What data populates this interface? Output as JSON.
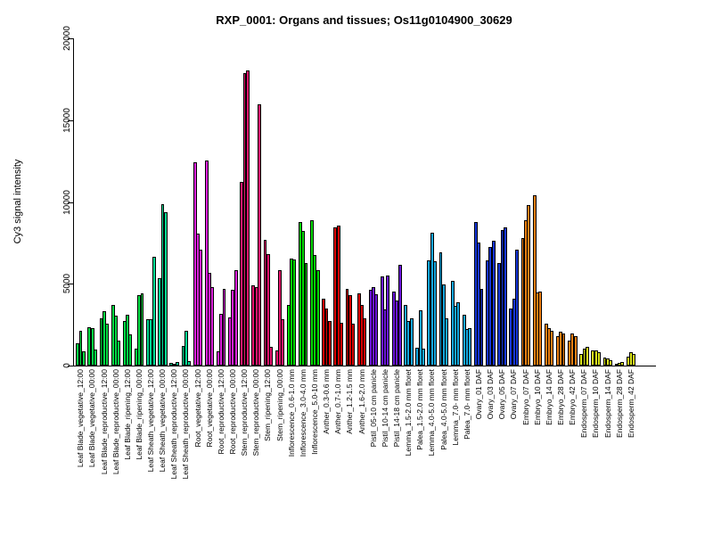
{
  "title": "RXP_0001: Organs and tissues; Os11g0104900_30629",
  "chart_data": {
    "type": "bar",
    "title": "RXP_0001: Organs and tissues; Os11g0104900_30629",
    "xlabel": "",
    "ylabel": "Cy3 signal intensity",
    "ylim": [
      0,
      20000
    ],
    "yticks": [
      0,
      5000,
      10000,
      15000,
      20000
    ],
    "grid": false,
    "legend_position": "none",
    "bars_per_group": 3,
    "bar_outline_color": "#000000",
    "groups": [
      {
        "label": "Leaf Blade_vegetative_12:00",
        "color": "#00DD44",
        "values": [
          1350,
          2150,
          870
        ]
      },
      {
        "label": "Leaf Blade_vegetative_00:00",
        "color": "#00DD44",
        "values": [
          2350,
          2300,
          1000
        ]
      },
      {
        "label": "Leaf Blade_reproductive_12:00",
        "color": "#00DD44",
        "values": [
          2900,
          3350,
          2550
        ]
      },
      {
        "label": "Leaf Blade_reproductive_00:00",
        "color": "#00DD44",
        "values": [
          3700,
          3050,
          1500
        ]
      },
      {
        "label": "Leaf Blade_ripening_12:00",
        "color": "#00DD44",
        "values": [
          2700,
          3100,
          1900
        ]
      },
      {
        "label": "Leaf Blade_ripening_00:00",
        "color": "#00DD44",
        "values": [
          1050,
          4300,
          4400
        ]
      },
      {
        "label": "Leaf Sheath_vegetative_12:00",
        "color": "#00DF95",
        "values": [
          2850,
          2820,
          6670
        ]
      },
      {
        "label": "Leaf Sheath_vegetative_00:00",
        "color": "#00DF95",
        "values": [
          5360,
          9870,
          9360
        ]
      },
      {
        "label": "Leaf Sheath_reproductive_12:00",
        "color": "#00DF95",
        "values": [
          150,
          100,
          220
        ]
      },
      {
        "label": "Leaf Sheath_reproductive_00:00",
        "color": "#00DF95",
        "values": [
          1220,
          2120,
          270
        ]
      },
      {
        "label": "Root_vegetative_12:00",
        "color": "#DD22DD",
        "values": [
          12400,
          8090,
          7090
        ]
      },
      {
        "label": "Root_vegetative_00:00",
        "color": "#DD22DD",
        "values": [
          12550,
          5650,
          4800
        ]
      },
      {
        "label": "Root_reproductive_12:00",
        "color": "#DD22DD",
        "values": [
          870,
          3180,
          4690
        ]
      },
      {
        "label": "Root_reproductive_00:00",
        "color": "#DD22DD",
        "values": [
          2950,
          4630,
          5815
        ]
      },
      {
        "label": "Stem_reproductive_12:00",
        "color": "#E8146E",
        "values": [
          11230,
          17870,
          18050
        ]
      },
      {
        "label": "Stem_reproductive_00:00",
        "color": "#E8146E",
        "values": [
          4900,
          4815,
          15950
        ]
      },
      {
        "label": "Stem_ripening_12:00",
        "color": "#E8146E",
        "values": [
          7670,
          6815,
          1130
        ]
      },
      {
        "label": "Stem_ripening_00:00",
        "color": "#E8146E",
        "values": [
          910,
          5850,
          2820
        ]
      },
      {
        "label": "Inflorescence_0.6-1.0 mm",
        "color": "#00DD00",
        "values": [
          3700,
          6540,
          6490
        ]
      },
      {
        "label": "Inflorescence_3.0-4.0 mm",
        "color": "#00DD00",
        "values": [
          8760,
          8210,
          6270
        ]
      },
      {
        "label": "Inflorescence_5.0-10 mm",
        "color": "#00DD00",
        "values": [
          8870,
          6760,
          5815
        ]
      },
      {
        "label": "Anther_0.3-0.6 mm",
        "color": "#DD0000",
        "values": [
          4100,
          3500,
          2700
        ]
      },
      {
        "label": "Anther_0.7-1.0 mm",
        "color": "#DD0000",
        "values": [
          8450,
          8540,
          2640
        ]
      },
      {
        "label": "Anther_1.2-1.5 mm",
        "color": "#DD0000",
        "values": [
          4700,
          4300,
          2550
        ]
      },
      {
        "label": "Anther_1.6-2.0 mm",
        "color": "#DD0000",
        "values": [
          4400,
          3730,
          2910
        ]
      },
      {
        "label": "Pistil_05-10 cm panicle",
        "color": "#6C16DD",
        "values": [
          4630,
          4815,
          4360
        ]
      },
      {
        "label": "Pistil_10-14 cm panicle",
        "color": "#6C16DD",
        "values": [
          5450,
          3450,
          5490
        ]
      },
      {
        "label": "Pistil_14-18 cm panicle",
        "color": "#6C16DD",
        "values": [
          4500,
          4000,
          6140
        ]
      },
      {
        "label": "Lemma_1.5-2.0 mm floret",
        "color": "#15A8E0",
        "values": [
          3725,
          2730,
          2870
        ]
      },
      {
        "label": "Palea_1.5-2.0 mm floret",
        "color": "#15A8E0",
        "values": [
          1100,
          3360,
          1050
        ]
      },
      {
        "label": "Lemma_4.0-5.0 mm floret",
        "color": "#15A8E0",
        "values": [
          6450,
          8140,
          6400
        ]
      },
      {
        "label": "Palea_4.0-5.0 mm floret",
        "color": "#15A8E0",
        "values": [
          6940,
          4960,
          2910
        ]
      },
      {
        "label": "Lemma_7.0- mm floret",
        "color": "#15A8E0",
        "values": [
          5180,
          3630,
          3850
        ]
      },
      {
        "label": "Palea_7.0- mm floret",
        "color": "#15A8E0",
        "values": [
          3130,
          2220,
          2270
        ]
      },
      {
        "label": "Ovary_01 DAF",
        "color": "#1636D8",
        "values": [
          8760,
          7540,
          4700
        ]
      },
      {
        "label": "Ovary_03 DAF",
        "color": "#1636D8",
        "values": [
          6450,
          7270,
          7630
        ]
      },
      {
        "label": "Ovary_05 DAF",
        "color": "#1636D8",
        "values": [
          6270,
          8270,
          8450
        ]
      },
      {
        "label": "Ovary_07 DAF",
        "color": "#1636D8",
        "values": [
          3500,
          4090,
          7090
        ]
      },
      {
        "label": "Embryo_07 DAF",
        "color": "#EF8012",
        "values": [
          7810,
          8900,
          9810
        ]
      },
      {
        "label": "Embryo_10 DAF",
        "color": "#EF8012",
        "values": [
          10415,
          4450,
          4540
        ]
      },
      {
        "label": "Embryo_14 DAF",
        "color": "#EF8012",
        "values": [
          2550,
          2300,
          2100
        ]
      },
      {
        "label": "Embryo_28 DAF",
        "color": "#EF8012",
        "values": [
          1800,
          2050,
          1950
        ]
      },
      {
        "label": "Embryo_42 DAF",
        "color": "#EF8012",
        "values": [
          1550,
          1950,
          1800
        ]
      },
      {
        "label": "Endosperm_07 DAF",
        "color": "#DCE81C",
        "values": [
          730,
          1040,
          1160
        ]
      },
      {
        "label": "Endosperm_10 DAF",
        "color": "#DCE81C",
        "values": [
          910,
          950,
          820
        ]
      },
      {
        "label": "Endosperm_14 DAF",
        "color": "#DCE81C",
        "values": [
          510,
          440,
          330
        ]
      },
      {
        "label": "Endosperm_28 DAF",
        "color": "#DCE81C",
        "values": [
          130,
          165,
          200
        ]
      },
      {
        "label": "Endosperm_42 DAF",
        "color": "#DCE81C",
        "values": [
          545,
          800,
          690
        ]
      }
    ]
  }
}
